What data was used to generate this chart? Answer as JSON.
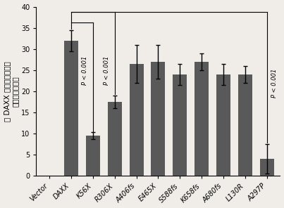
{
  "categories": [
    "Vector",
    "DAXX",
    "K56X",
    "R306X",
    "A406fs",
    "E465X",
    "S588fs",
    "K658fs",
    "A680fs",
    "L130R",
    "A297P"
  ],
  "values": [
    0,
    32,
    9.5,
    17.5,
    26.5,
    27,
    24,
    27,
    24,
    24,
    4
  ],
  "errors": [
    0,
    2.5,
    0.8,
    1.5,
    4.5,
    4.0,
    2.5,
    2,
    2.5,
    2,
    3.5
  ],
  "bar_color": "#595959",
  "ylabel_line1": "有 DAXX 在卡卡哈尔小体",
  "ylabel_line2": "的细胞的百分比",
  "ylim": [
    0,
    40
  ],
  "yticks": [
    0,
    5,
    10,
    15,
    20,
    25,
    30,
    35,
    40
  ],
  "background_color": "#f0ede8",
  "fontsize_tick": 7,
  "fontsize_ylabel": 7.5
}
